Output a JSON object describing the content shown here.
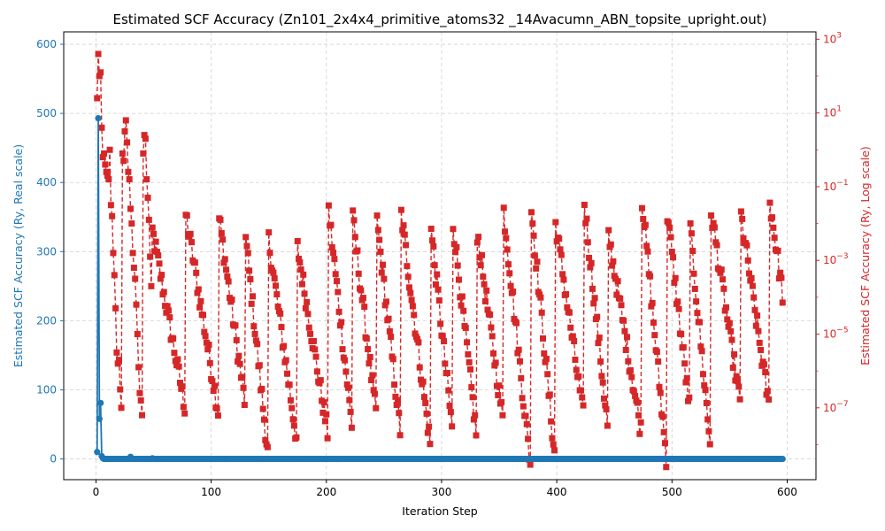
{
  "chart_data": {
    "type": "line",
    "title": "Estimated SCF Accuracy (Zn101_2x4x4_primitive_atoms32 _14Avacumn_ABN_topsite_upright.out)",
    "xlabel": "Iteration Step",
    "ylabel_left": "Estimated SCF Accuracy (Ry, Real scale)",
    "ylabel_right": "Estimated SCF Accuracy (Ry, Log scale)",
    "x_range": [
      -28,
      625
    ],
    "x_ticks": [
      0,
      100,
      200,
      300,
      400,
      500,
      600
    ],
    "y_left_range": [
      -30,
      618
    ],
    "y_left_ticks": [
      0,
      100,
      200,
      300,
      400,
      500,
      600
    ],
    "y_right_log_range": [
      -8.95,
      3.2
    ],
    "y_right_ticks": [
      {
        "exp": 3,
        "label": "10^3"
      },
      {
        "exp": 1,
        "label": "10^1"
      },
      {
        "exp": -1,
        "label": "10^-1"
      },
      {
        "exp": -3,
        "label": "10^-3"
      },
      {
        "exp": -5,
        "label": "10^-5"
      },
      {
        "exp": -7,
        "label": "10^-7"
      }
    ],
    "grid": true,
    "x_step": 1,
    "series": [
      {
        "axis": "left",
        "style": "solid line with circle markers",
        "color": "#1f77b4",
        "x_start": 1,
        "values": [
          10,
          493,
          58,
          81,
          4,
          1,
          0,
          0,
          0,
          0,
          0,
          0,
          0,
          0,
          0,
          0,
          0,
          0,
          0,
          0,
          0,
          0,
          0,
          0,
          0,
          0,
          0,
          0,
          0,
          3,
          0,
          0,
          0,
          0,
          0,
          0,
          0,
          0,
          0,
          0,
          0,
          0,
          0,
          0,
          0,
          0,
          0,
          0,
          1,
          0,
          0
        ],
        "values_after_note": "0 for every step from 52 to 596"
      },
      {
        "axis": "right_log",
        "style": "dashed line with square markers",
        "color": "#d62728",
        "x_start": 1,
        "x_end": 596,
        "early_values_log10": [
          1.4,
          2.6,
          2.0,
          2.1,
          0.6,
          -0.2,
          -0.1,
          -0.4,
          -0.6,
          -0.7,
          -0.8,
          0.0,
          -1.5,
          -1.8,
          -2.8,
          -3.4,
          -4.3,
          -5.5,
          -5.8,
          -5.7,
          -6.5,
          -7.0,
          -0.1,
          -0.3,
          0.5,
          0.8,
          0.2,
          -0.6,
          -0.8,
          -1.6,
          -2.0,
          -2.8,
          -3.2,
          -3.5,
          -4.2,
          -5.0,
          -5.9,
          -6.6,
          -6.8,
          -7.2,
          -0.1,
          0.4,
          0.3,
          -0.8,
          -1.3,
          -1.9,
          -2.9,
          -3.7
        ],
        "recurring_pattern": "after step ~48 the value repeatedly jumps up to about 1e-2 to 1e-1, then decays step by step to about 1e-7 to 1e-8 before jumping again, roughly every 20 to 30 iterations, until step 596"
      }
    ]
  }
}
